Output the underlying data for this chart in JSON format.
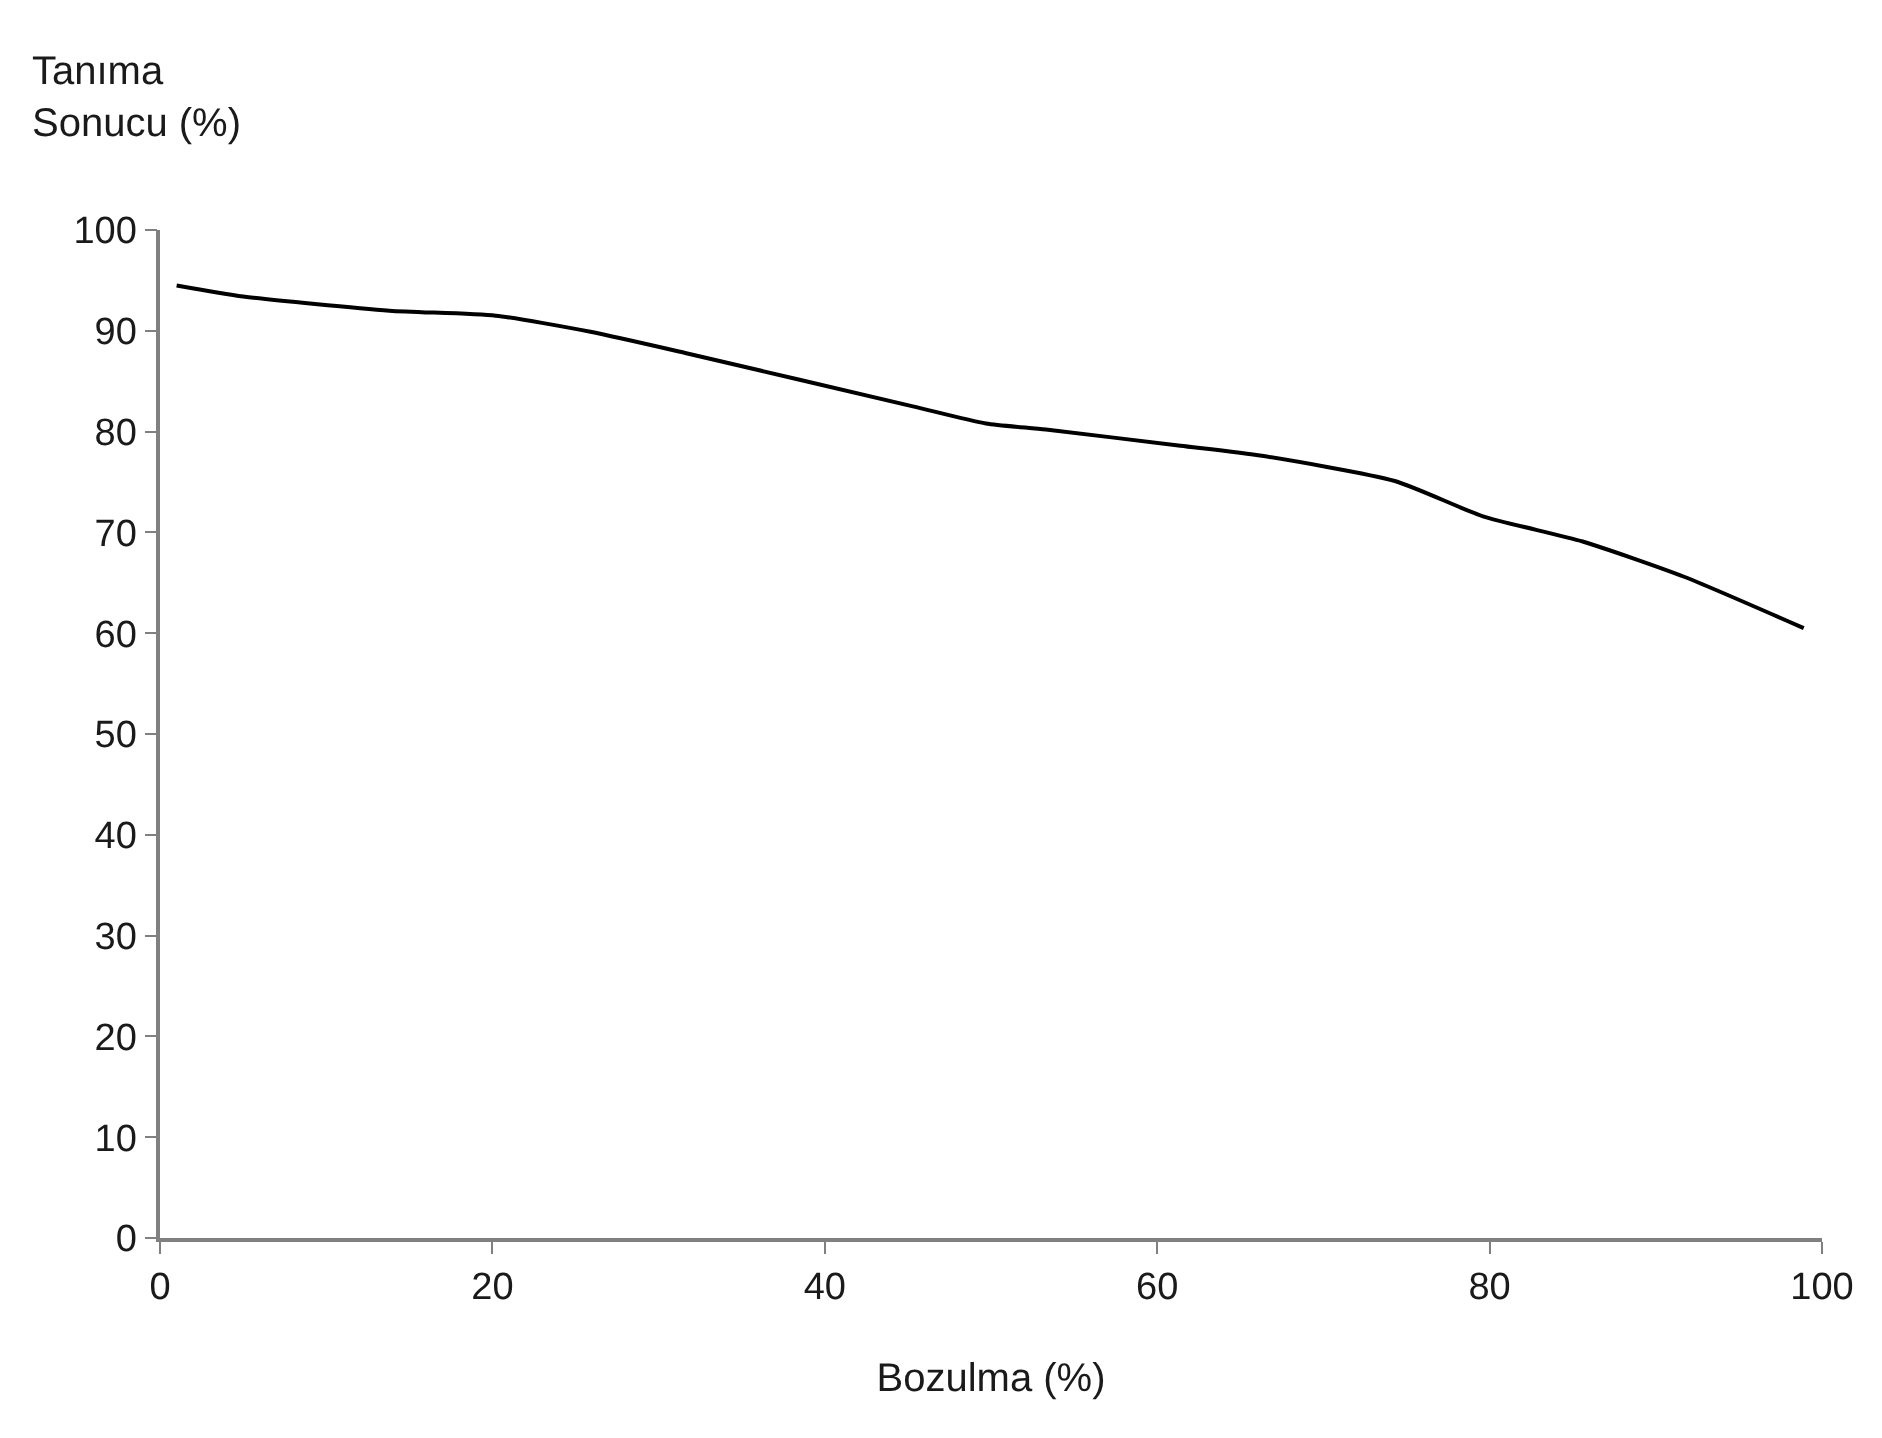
{
  "chart_data": {
    "type": "line",
    "ylabel": "Tanıma\nSonucu (%)",
    "xlabel": "Bozulma (%)",
    "x": [
      1.0,
      5.0,
      13.8,
      20.2,
      25.9,
      31.6,
      45.3,
      49.7,
      53.3,
      61.4,
      66.3,
      74.3,
      79.6,
      85.6,
      91.7,
      98.9
    ],
    "series": [
      {
        "color": "#000000",
        "values": [
          94.5,
          93.4,
          92.0,
          91.5,
          89.9,
          87.8,
          82.5,
          80.8,
          80.2,
          78.6,
          77.6,
          75.1,
          71.6,
          69.1,
          65.6,
          60.5
        ]
      }
    ],
    "xlim": [
      0,
      100
    ],
    "xticks": [
      0,
      20,
      40,
      60,
      80,
      100
    ],
    "ylim": [
      0,
      100
    ],
    "yticks": [
      0,
      10,
      20,
      30,
      40,
      50,
      60,
      70,
      80,
      90,
      100
    ],
    "marker": "none",
    "line_style": "solid"
  }
}
